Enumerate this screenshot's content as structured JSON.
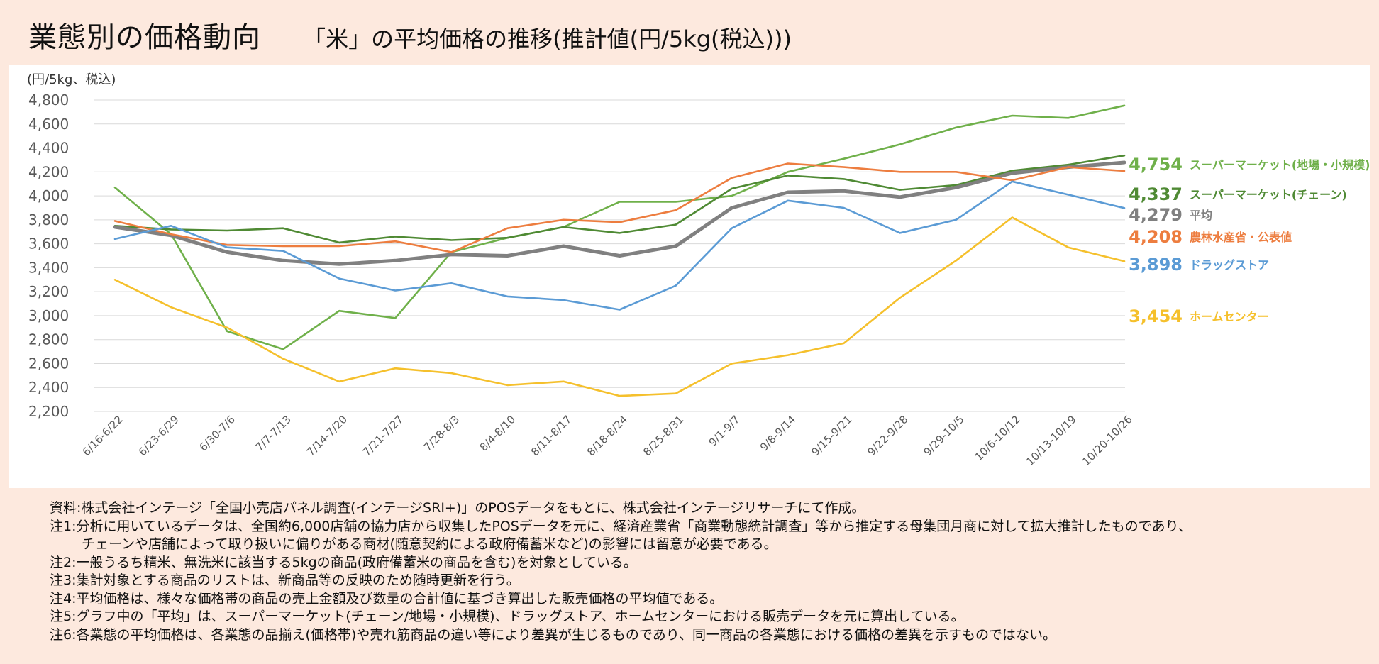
{
  "header": {
    "title": "業態別の価格動向",
    "subtitle": "「米」の平均価格の推移(推計値(円/5kg(税込)))"
  },
  "chart_data": {
    "type": "line",
    "ylabel": "(円/5kg、税込)",
    "ylim": [
      2200,
      4800
    ],
    "yticks": [
      "4,800",
      "4,600",
      "4,400",
      "4,200",
      "4,000",
      "3,800",
      "3,600",
      "3,400",
      "3,200",
      "3,000",
      "2,800",
      "2,600",
      "2,400",
      "2,200"
    ],
    "grid": true,
    "legend": "right",
    "categories": [
      "6/16-6/22",
      "6/23-6/29",
      "6/30-7/6",
      "7/7-7/13",
      "7/14-7/20",
      "7/21-7/27",
      "7/28-8/3",
      "8/4-8/10",
      "8/11-8/17",
      "8/18-8/24",
      "8/25-8/31",
      "9/1-9/7",
      "9/8-9/14",
      "9/15-9/21",
      "9/22-9/28",
      "9/29-10/5",
      "10/6-10/12",
      "10/13-10/19",
      "10/20-10/26"
    ],
    "series": [
      {
        "name": "スーパーマーケット(地場・小規模)",
        "label": "4,754",
        "color": "#6fb04a",
        "values": [
          4070,
          3680,
          2870,
          2720,
          3040,
          2980,
          3530,
          3650,
          3740,
          3950,
          3950,
          4000,
          4200,
          4310,
          4430,
          4570,
          4670,
          4650,
          4754
        ]
      },
      {
        "name": "スーパーマーケット(チェーン)",
        "label": "4,337",
        "color": "#4f8a34",
        "values": [
          3750,
          3720,
          3710,
          3730,
          3610,
          3660,
          3630,
          3650,
          3740,
          3690,
          3760,
          4060,
          4170,
          4140,
          4050,
          4090,
          4210,
          4260,
          4337
        ]
      },
      {
        "name": "平均",
        "label": "4,279",
        "color": "#808080",
        "values": [
          3740,
          3670,
          3530,
          3460,
          3430,
          3460,
          3510,
          3500,
          3580,
          3500,
          3580,
          3900,
          4030,
          4040,
          3990,
          4070,
          4190,
          4240,
          4279
        ]
      },
      {
        "name": "農林水産省・公表値",
        "label": "4,208",
        "color": "#ed7d3f",
        "values": [
          3790,
          3680,
          3590,
          3580,
          3580,
          3620,
          3530,
          3730,
          3800,
          3780,
          3880,
          4150,
          4270,
          4240,
          4200,
          4200,
          4130,
          4240,
          4208
        ]
      },
      {
        "name": "ドラッグストア",
        "label": "3,898",
        "color": "#5b9bd5",
        "values": [
          3640,
          3750,
          3570,
          3540,
          3310,
          3210,
          3270,
          3160,
          3130,
          3050,
          3250,
          3730,
          3960,
          3900,
          3690,
          3800,
          4120,
          4010,
          3898
        ]
      },
      {
        "name": "ホームセンター",
        "label": "3,454",
        "color": "#f5c02c",
        "values": [
          3300,
          3070,
          2900,
          2640,
          2450,
          2560,
          2520,
          2420,
          2450,
          2330,
          2350,
          2600,
          2670,
          2770,
          3150,
          3460,
          3820,
          3570,
          3454
        ]
      }
    ]
  },
  "notes": [
    {
      "text": "資料:株式会社インテージ「全国小売店パネル調査(インテージSRI+)」のPOSデータをもとに、株式会社インテージリサーチにて作成。"
    },
    {
      "text": "注1:分析に用いているデータは、全国約6,000店舗の協力店から収集したPOSデータを元に、経済産業省「商業動態統計調査」等から推定する母集団月商に対して拡大推計したものであり、",
      "cont": "チェーンや店舗によって取り扱いに偏りがある商材(随意契約による政府備蓄米など)の影響には留意が必要である。"
    },
    {
      "text": "注2:一般うるち精米、無洗米に該当する5kgの商品(政府備蓄米の商品を含む)を対象としている。"
    },
    {
      "text": "注3:集計対象とする商品のリストは、新商品等の反映のため随時更新を行う。"
    },
    {
      "text": "注4:平均価格は、様々な価格帯の商品の売上金額及び数量の合計値に基づき算出した販売価格の平均値である。"
    },
    {
      "text": "注5:グラフ中の「平均」は、スーパーマーケット(チェーン/地場・小規模)、ドラッグストア、ホームセンターにおける販売データを元に算出している。"
    },
    {
      "text": "注6:各業態の平均価格は、各業態の品揃え(価格帯)や売れ筋商品の違い等により差異が生じるものであり、同一商品の各業態における価格の差異を示すものではない。"
    }
  ]
}
